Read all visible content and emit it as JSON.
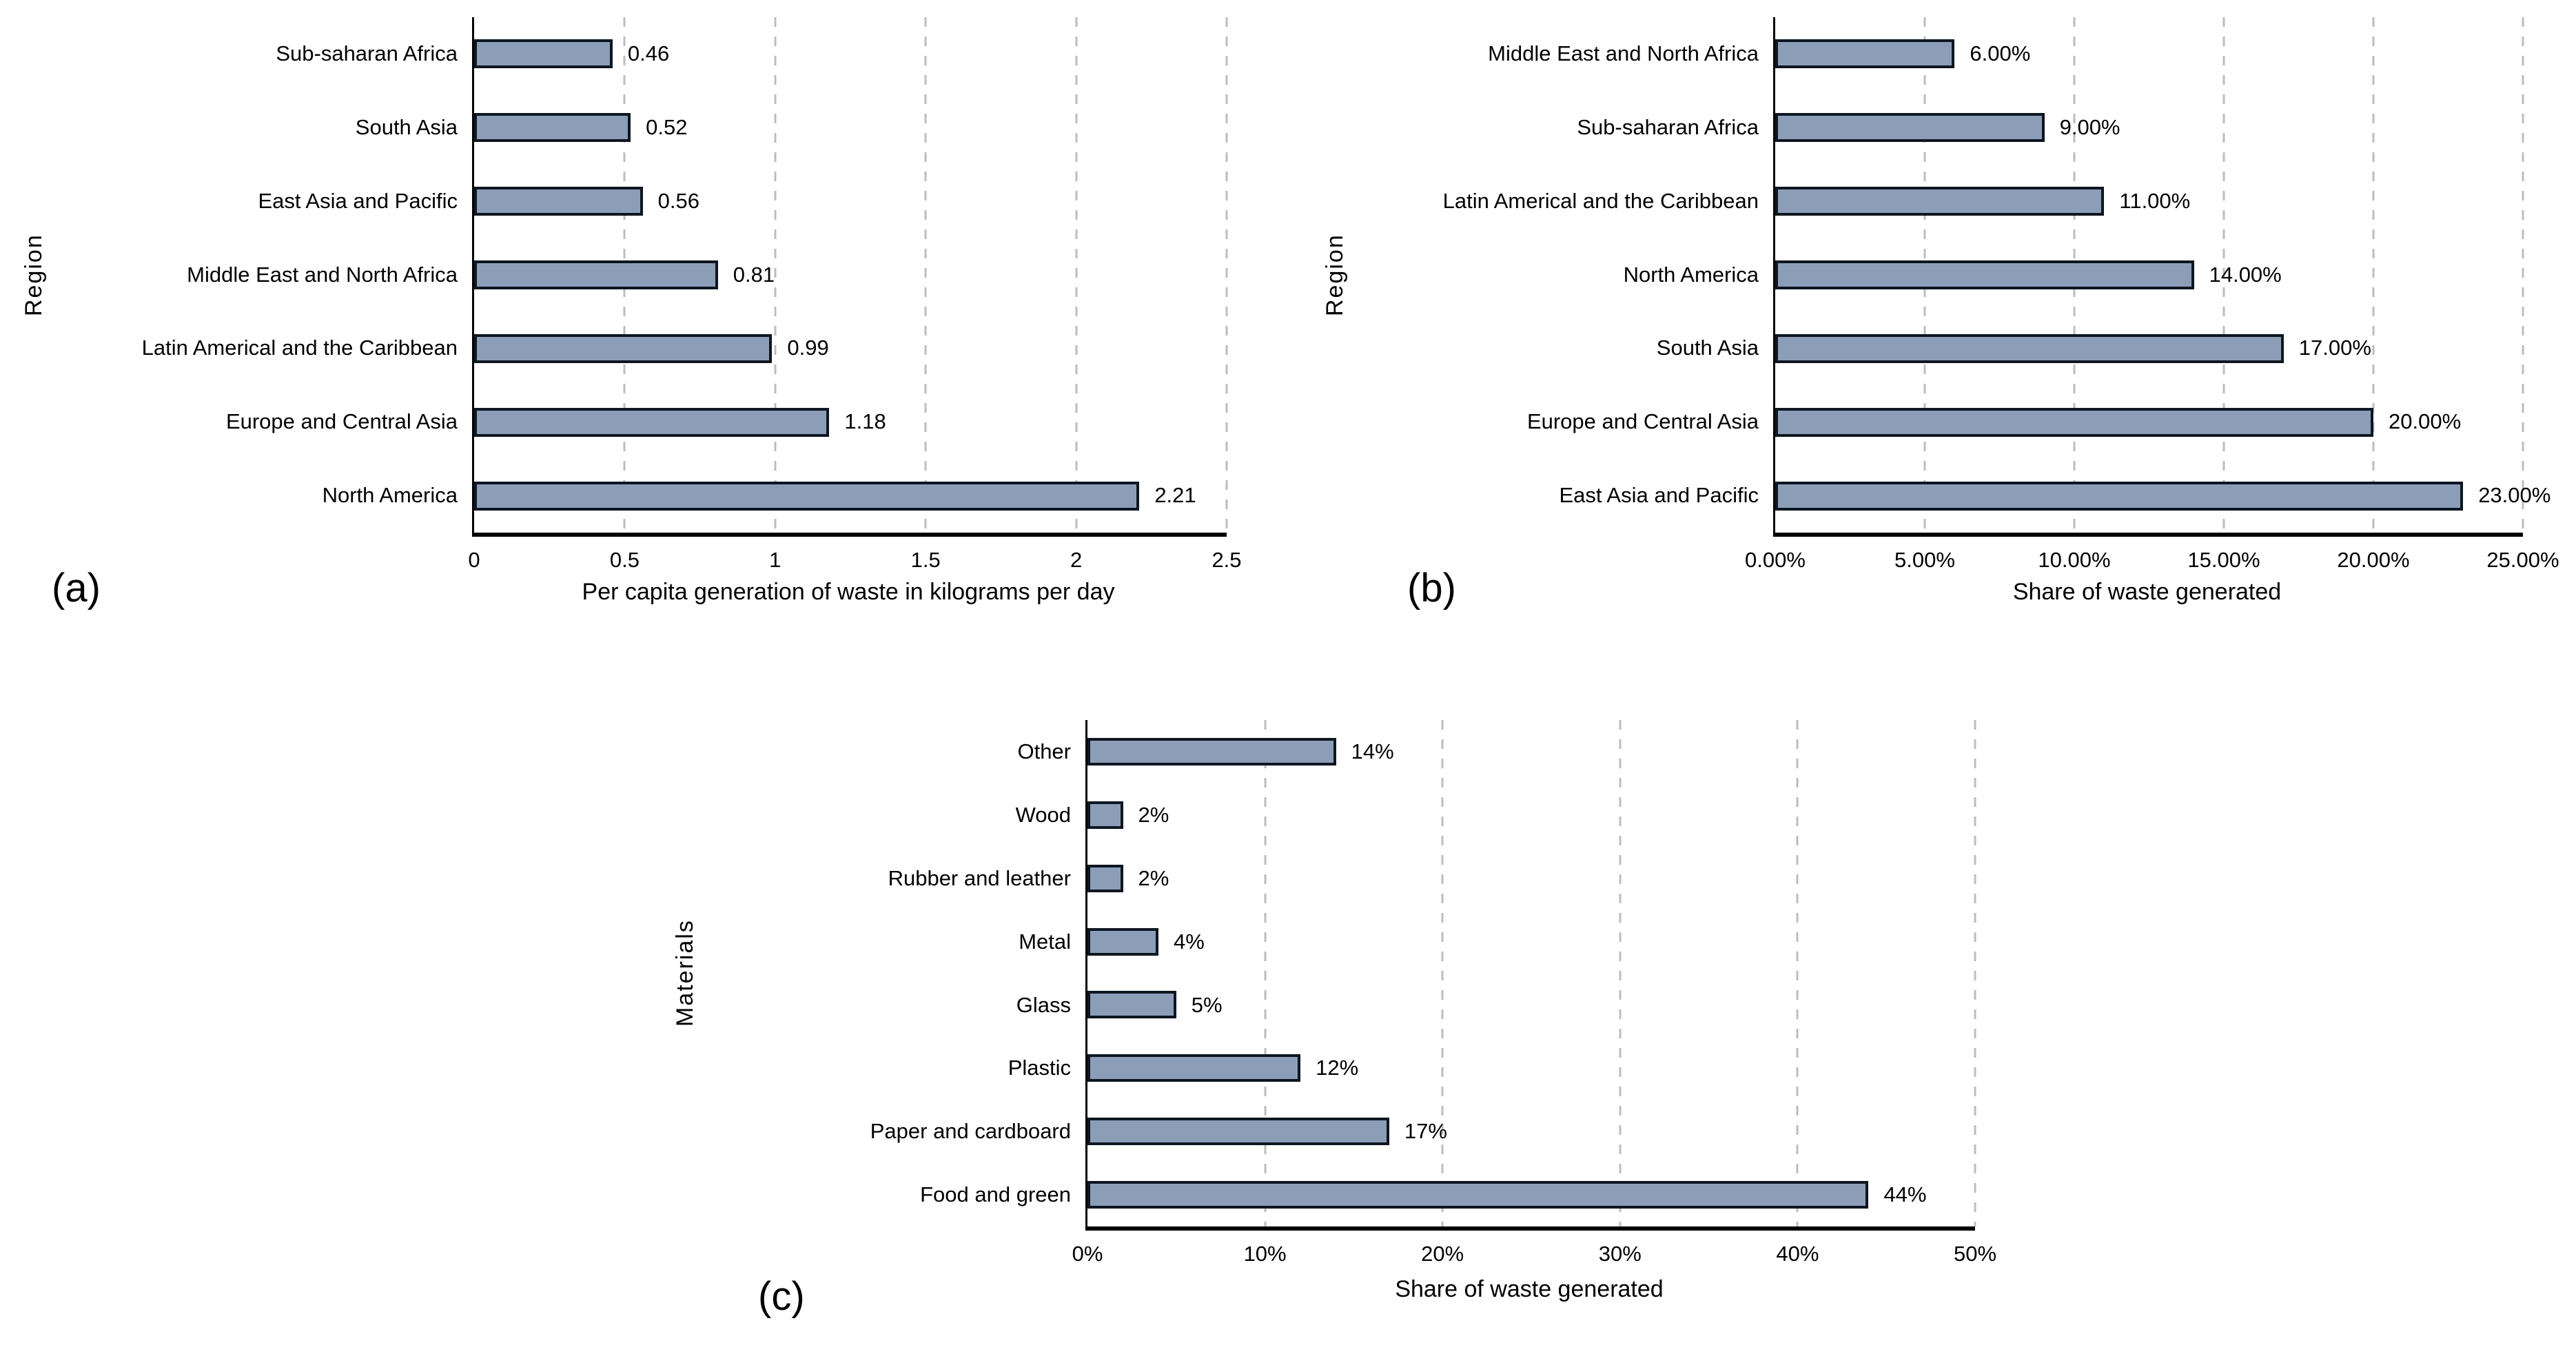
{
  "style": {
    "background": "#ffffff",
    "bar_fill": "#8C9DB8",
    "bar_border": "#0E1620",
    "grid_color": "#bdbdbd",
    "axis_color": "#000000",
    "text_color": "#000000"
  },
  "chart_data": [
    {
      "type": "bar",
      "orientation": "horizontal",
      "panel_label": "(a)",
      "xlabel": "Per capita generation of waste in kilograms per day",
      "ylabel": "Region",
      "xlim": [
        0,
        2.5
      ],
      "grid": "vertical-dashed",
      "legend": null,
      "xtick_values": [
        0,
        0.5,
        1,
        1.5,
        2,
        2.5
      ],
      "xtick_labels": [
        "0",
        "0.5",
        "1",
        "1.5",
        "2",
        "2.5"
      ],
      "categories": [
        "Sub-saharan Africa",
        "South Asia",
        "East Asia and Pacific",
        "Middle East and North Africa",
        "Latin Americal and the Caribbean",
        "Europe and Central Asia",
        "North America"
      ],
      "values": [
        0.46,
        0.52,
        0.56,
        0.81,
        0.99,
        1.18,
        2.21
      ],
      "value_labels": [
        "0.46",
        "0.52",
        "0.56",
        "0.81",
        "0.99",
        "1.18",
        "2.21"
      ]
    },
    {
      "type": "bar",
      "orientation": "horizontal",
      "panel_label": "(b)",
      "xlabel": "Share of waste generated",
      "ylabel": "Region",
      "xlim": [
        0,
        25
      ],
      "grid": "vertical-dashed",
      "legend": null,
      "xtick_values": [
        0,
        5,
        10,
        15,
        20,
        25
      ],
      "xtick_labels": [
        "0.00%",
        "5.00%",
        "10.00%",
        "15.00%",
        "20.00%",
        "25.00%"
      ],
      "categories": [
        "Middle East and North Africa",
        "Sub-saharan Africa",
        "Latin Americal and the Caribbean",
        "North America",
        "South Asia",
        "Europe and Central Asia",
        "East Asia and Pacific"
      ],
      "values": [
        6,
        9,
        11,
        14,
        17,
        20,
        23
      ],
      "value_labels": [
        "6.00%",
        "9.00%",
        "11.00%",
        "14.00%",
        "17.00%",
        "20.00%",
        "23.00%"
      ]
    },
    {
      "type": "bar",
      "orientation": "horizontal",
      "panel_label": "(c)",
      "xlabel": "Share of waste generated",
      "ylabel": "Materials",
      "xlim": [
        0,
        50
      ],
      "grid": "vertical-dashed",
      "legend": null,
      "xtick_values": [
        0,
        10,
        20,
        30,
        40,
        50
      ],
      "xtick_labels": [
        "0%",
        "10%",
        "20%",
        "30%",
        "40%",
        "50%"
      ],
      "categories": [
        "Other",
        "Wood",
        "Rubber and leather",
        "Metal",
        "Glass",
        "Plastic",
        "Paper and cardboard",
        "Food and green"
      ],
      "values": [
        14,
        2,
        2,
        4,
        5,
        12,
        17,
        44
      ],
      "value_labels": [
        "14%",
        "2%",
        "2%",
        "4%",
        "5%",
        "12%",
        "17%",
        "44%"
      ]
    }
  ]
}
